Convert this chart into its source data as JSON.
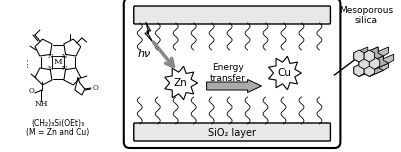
{
  "bg_color": "#ffffff",
  "box_color": "#000000",
  "gray_fill": "#aaaaaa",
  "light_gray": "#d0d0d0",
  "title_mesoporous": "Mesoporous\nsilica",
  "label_hv": "hν",
  "label_energy": "Energy\ntransfer",
  "label_Zn": "Zn",
  "label_Cu": "Cu",
  "label_sio2": "SiO₂ layer",
  "label_ch2": "(CH₂)₃Si(OEt)₃",
  "label_M": "(M = Zn and Cu)",
  "label_NH": "NH",
  "figure_width": 4.01,
  "figure_height": 1.52,
  "dpi": 100
}
